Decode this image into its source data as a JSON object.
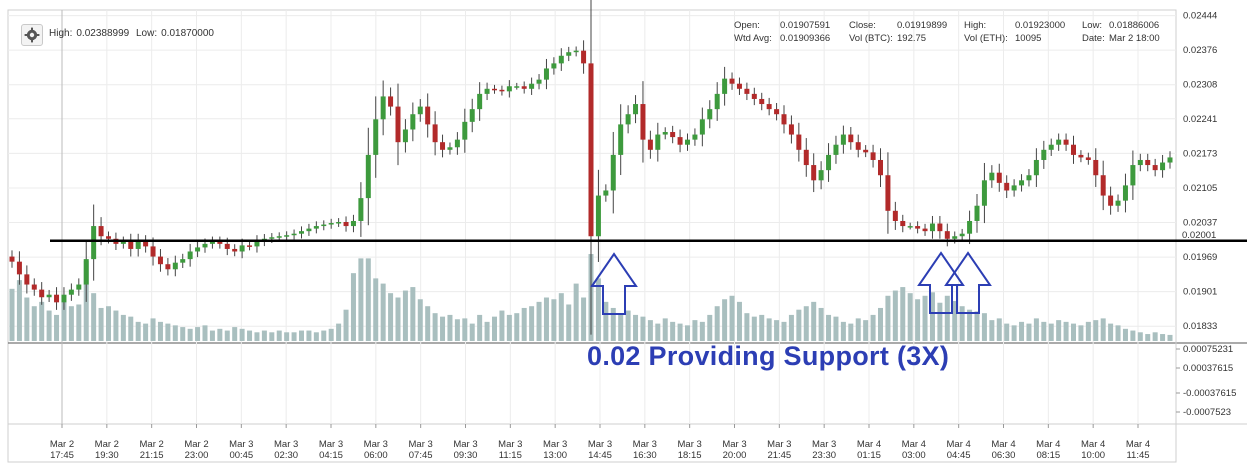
{
  "header": {
    "high_label": "High:",
    "high_value": "0.02388999",
    "low_label": "Low:",
    "low_value": "0.01870000"
  },
  "info": {
    "open_label": "Open:",
    "open_value": "0.01907591",
    "close_label": "Close:",
    "close_value": "0.01919899",
    "high_label": "High:",
    "high_value": "0.01923000",
    "low_label": "Low:",
    "low_value": "0.01886006",
    "wtd_label": "Wtd Avg:",
    "wtd_value": "0.01909366",
    "volbtc_label": "Vol (BTC):",
    "volbtc_value": "192.75",
    "voleth_label": "Vol (ETH):",
    "voleth_value": "10095",
    "date_label": "Date:",
    "date_value": "Mar 2 18:00"
  },
  "annotation": "0.02 Providing Support (3X)",
  "colors": {
    "up": "#3d9a3d",
    "down": "#b22a2a",
    "volume": "#a9bfbf",
    "support_line": "#000000",
    "arrow": "#2c3eb4",
    "grid": "#ececec"
  },
  "chart_data": {
    "type": "candlestick",
    "price_axis": {
      "ticks": [
        "0.02444",
        "0.02376",
        "0.02308",
        "0.02241",
        "0.02173",
        "0.02105",
        "0.02037",
        "0.01969",
        "0.01901",
        "0.01833"
      ],
      "ylim": [
        0.018,
        0.02455
      ]
    },
    "support_level": {
      "value": 0.02001,
      "label": "0.02001"
    },
    "indicator_axis": {
      "ticks": [
        "0.00075231",
        "0.00037615",
        "-0.00037615",
        "-0.0007523"
      ]
    },
    "x_ticks": [
      [
        "Mar 2",
        "17:45"
      ],
      [
        "Mar 2",
        "19:30"
      ],
      [
        "Mar 2",
        "21:15"
      ],
      [
        "Mar 2",
        "23:00"
      ],
      [
        "Mar 3",
        "00:45"
      ],
      [
        "Mar 3",
        "02:30"
      ],
      [
        "Mar 3",
        "04:15"
      ],
      [
        "Mar 3",
        "06:00"
      ],
      [
        "Mar 3",
        "07:45"
      ],
      [
        "Mar 3",
        "09:30"
      ],
      [
        "Mar 3",
        "11:15"
      ],
      [
        "Mar 3",
        "13:00"
      ],
      [
        "Mar 3",
        "14:45"
      ],
      [
        "Mar 3",
        "16:30"
      ],
      [
        "Mar 3",
        "18:15"
      ],
      [
        "Mar 3",
        "20:00"
      ],
      [
        "Mar 3",
        "21:45"
      ],
      [
        "Mar 3",
        "23:30"
      ],
      [
        "Mar 4",
        "01:15"
      ],
      [
        "Mar 4",
        "03:00"
      ],
      [
        "Mar 4",
        "04:45"
      ],
      [
        "Mar 4",
        "06:30"
      ],
      [
        "Mar 4",
        "08:15"
      ],
      [
        "Mar 4",
        "10:00"
      ],
      [
        "Mar 4",
        "11:45"
      ]
    ],
    "interval_minutes": 15,
    "close": [
      0.0196,
      0.01935,
      0.01915,
      0.01905,
      0.0189,
      0.01895,
      0.0188,
      0.01895,
      0.01905,
      0.01915,
      0.01965,
      0.0203,
      0.0201,
      0.02005,
      0.01995,
      0.02,
      0.01985,
      0.02,
      0.0199,
      0.0197,
      0.01955,
      0.01945,
      0.01958,
      0.01965,
      0.0198,
      0.01988,
      0.01995,
      0.02,
      0.01995,
      0.01985,
      0.0198,
      0.01992,
      0.0199,
      0.02,
      0.02005,
      0.02008,
      0.0201,
      0.02012,
      0.02015,
      0.0202,
      0.02025,
      0.0203,
      0.02033,
      0.02036,
      0.02038,
      0.0203,
      0.0204,
      0.02085,
      0.0217,
      0.0224,
      0.02285,
      0.02265,
      0.02195,
      0.0222,
      0.0225,
      0.02265,
      0.0223,
      0.02195,
      0.0218,
      0.02185,
      0.022,
      0.02235,
      0.0226,
      0.0229,
      0.023,
      0.02298,
      0.02295,
      0.02305,
      0.02305,
      0.023,
      0.0231,
      0.02318,
      0.0234,
      0.0235,
      0.02365,
      0.02372,
      0.02375,
      0.0235,
      0.0201,
      0.0209,
      0.021,
      0.0217,
      0.0223,
      0.0225,
      0.0227,
      0.022,
      0.0218,
      0.0221,
      0.02215,
      0.02205,
      0.0219,
      0.022,
      0.0221,
      0.0224,
      0.0226,
      0.0229,
      0.0232,
      0.0231,
      0.023,
      0.0229,
      0.0228,
      0.0227,
      0.0226,
      0.0225,
      0.0223,
      0.0221,
      0.0218,
      0.0215,
      0.0212,
      0.0214,
      0.0217,
      0.0219,
      0.0221,
      0.02195,
      0.0218,
      0.02175,
      0.0216,
      0.0213,
      0.0206,
      0.0204,
      0.0203,
      0.0203,
      0.02025,
      0.0202,
      0.02035,
      0.0202,
      0.02005,
      0.0201,
      0.02015,
      0.0204,
      0.0207,
      0.0212,
      0.02135,
      0.02115,
      0.021,
      0.0211,
      0.0212,
      0.0213,
      0.0216,
      0.0218,
      0.0219,
      0.022,
      0.0219,
      0.0217,
      0.02165,
      0.0216,
      0.0213,
      0.0209,
      0.0207,
      0.0208,
      0.0211,
      0.0215,
      0.0216,
      0.0215,
      0.0214,
      0.02155,
      0.02165
    ],
    "volume": [
      0.6,
      0.7,
      0.5,
      0.4,
      0.45,
      0.35,
      0.3,
      0.45,
      0.4,
      0.42,
      0.92,
      0.55,
      0.38,
      0.4,
      0.35,
      0.3,
      0.28,
      0.22,
      0.2,
      0.26,
      0.22,
      0.2,
      0.18,
      0.16,
      0.14,
      0.16,
      0.18,
      0.12,
      0.14,
      0.12,
      0.16,
      0.14,
      0.12,
      0.1,
      0.12,
      0.1,
      0.12,
      0.1,
      0.1,
      0.12,
      0.12,
      0.1,
      0.12,
      0.14,
      0.2,
      0.36,
      0.78,
      0.95,
      0.95,
      0.72,
      0.66,
      0.55,
      0.5,
      0.58,
      0.62,
      0.48,
      0.4,
      0.32,
      0.28,
      0.3,
      0.25,
      0.26,
      0.2,
      0.3,
      0.22,
      0.28,
      0.35,
      0.3,
      0.32,
      0.38,
      0.4,
      0.45,
      0.5,
      0.48,
      0.55,
      0.42,
      0.66,
      0.5,
      1.0,
      0.72,
      0.45,
      0.38,
      0.3,
      0.35,
      0.3,
      0.28,
      0.24,
      0.2,
      0.26,
      0.22,
      0.2,
      0.18,
      0.24,
      0.22,
      0.3,
      0.4,
      0.48,
      0.52,
      0.45,
      0.32,
      0.28,
      0.3,
      0.26,
      0.24,
      0.22,
      0.3,
      0.36,
      0.4,
      0.45,
      0.38,
      0.3,
      0.28,
      0.22,
      0.2,
      0.26,
      0.24,
      0.3,
      0.38,
      0.52,
      0.58,
      0.62,
      0.55,
      0.48,
      0.52,
      0.56,
      0.44,
      0.52,
      0.46,
      0.4,
      0.36,
      0.34,
      0.32,
      0.24,
      0.26,
      0.2,
      0.18,
      0.22,
      0.2,
      0.26,
      0.22,
      0.2,
      0.24,
      0.22,
      0.2,
      0.18,
      0.22,
      0.24,
      0.26,
      0.2,
      0.18,
      0.14,
      0.12,
      0.1,
      0.08,
      0.1,
      0.08,
      0.07
    ]
  }
}
